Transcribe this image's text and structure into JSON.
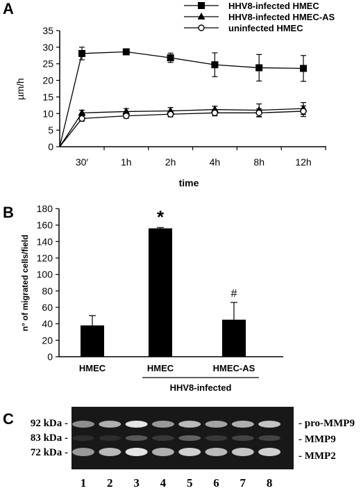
{
  "panels": {
    "a_label": "A",
    "b_label": "B",
    "c_label": "C"
  },
  "chart_data": [
    {
      "type": "line",
      "panel": "A",
      "ylabel": "µm/h",
      "xlabel": "time",
      "ylim": [
        0,
        35
      ],
      "yticks": [
        0,
        5,
        10,
        15,
        20,
        25,
        30,
        35
      ],
      "categories": [
        "30′",
        "1h",
        "2h",
        "4h",
        "8h",
        "12h"
      ],
      "origin": [
        0,
        0
      ],
      "legend_position": "top-right",
      "series": [
        {
          "name": "HHV8-infected HMEC",
          "marker": "square",
          "values": [
            28.1,
            28.6,
            26.8,
            24.7,
            23.8,
            23.6
          ],
          "errors": [
            1.9,
            0.5,
            1.4,
            3.6,
            4.0,
            3.9
          ]
        },
        {
          "name": "HHV8-infected HMEC-AS",
          "marker": "triangle",
          "values": [
            10.2,
            10.6,
            10.8,
            11.2,
            11.0,
            11.5
          ],
          "errors": [
            0.8,
            0.9,
            1.0,
            1.0,
            1.9,
            1.8
          ]
        },
        {
          "name": "uninfected HMEC",
          "marker": "circle",
          "values": [
            8.5,
            9.3,
            9.8,
            10.2,
            10.2,
            10.7
          ],
          "errors": [
            0.8,
            0.7,
            0.8,
            0.9,
            1.2,
            1.6
          ]
        }
      ]
    },
    {
      "type": "bar",
      "panel": "B",
      "ylabel": "n° of migrated cells/field",
      "ylim": [
        0,
        180
      ],
      "yticks": [
        0,
        20,
        40,
        60,
        80,
        100,
        120,
        140,
        160,
        180
      ],
      "categories": [
        "HMEC",
        "HMEC",
        "HMEC-AS"
      ],
      "values": [
        38,
        156,
        45
      ],
      "errors": [
        12,
        1,
        21
      ],
      "annotations": [
        "",
        "*",
        "#"
      ],
      "group_label": "HHV8-infected"
    }
  ],
  "gel": {
    "left_labels": [
      "92 kDa -",
      "83 kDa -",
      "72 kDa -"
    ],
    "right_labels": [
      "- pro-MMP9",
      "- MMP9",
      "- MMP2"
    ],
    "lanes": [
      "1",
      "2",
      "3",
      "4",
      "5",
      "6",
      "7",
      "8"
    ],
    "band_intensity": [
      [
        0.55,
        0.7,
        0.95,
        0.6,
        0.75,
        0.65,
        0.7,
        0.8
      ],
      [
        0.1,
        0.1,
        0.3,
        0.15,
        0.35,
        0.15,
        0.2,
        0.2
      ],
      [
        0.6,
        0.75,
        0.95,
        0.7,
        0.85,
        0.75,
        0.8,
        0.85
      ]
    ]
  },
  "colors": {
    "ink": "#000000",
    "gel_background": "#181818",
    "band": "#f0f0f0"
  }
}
